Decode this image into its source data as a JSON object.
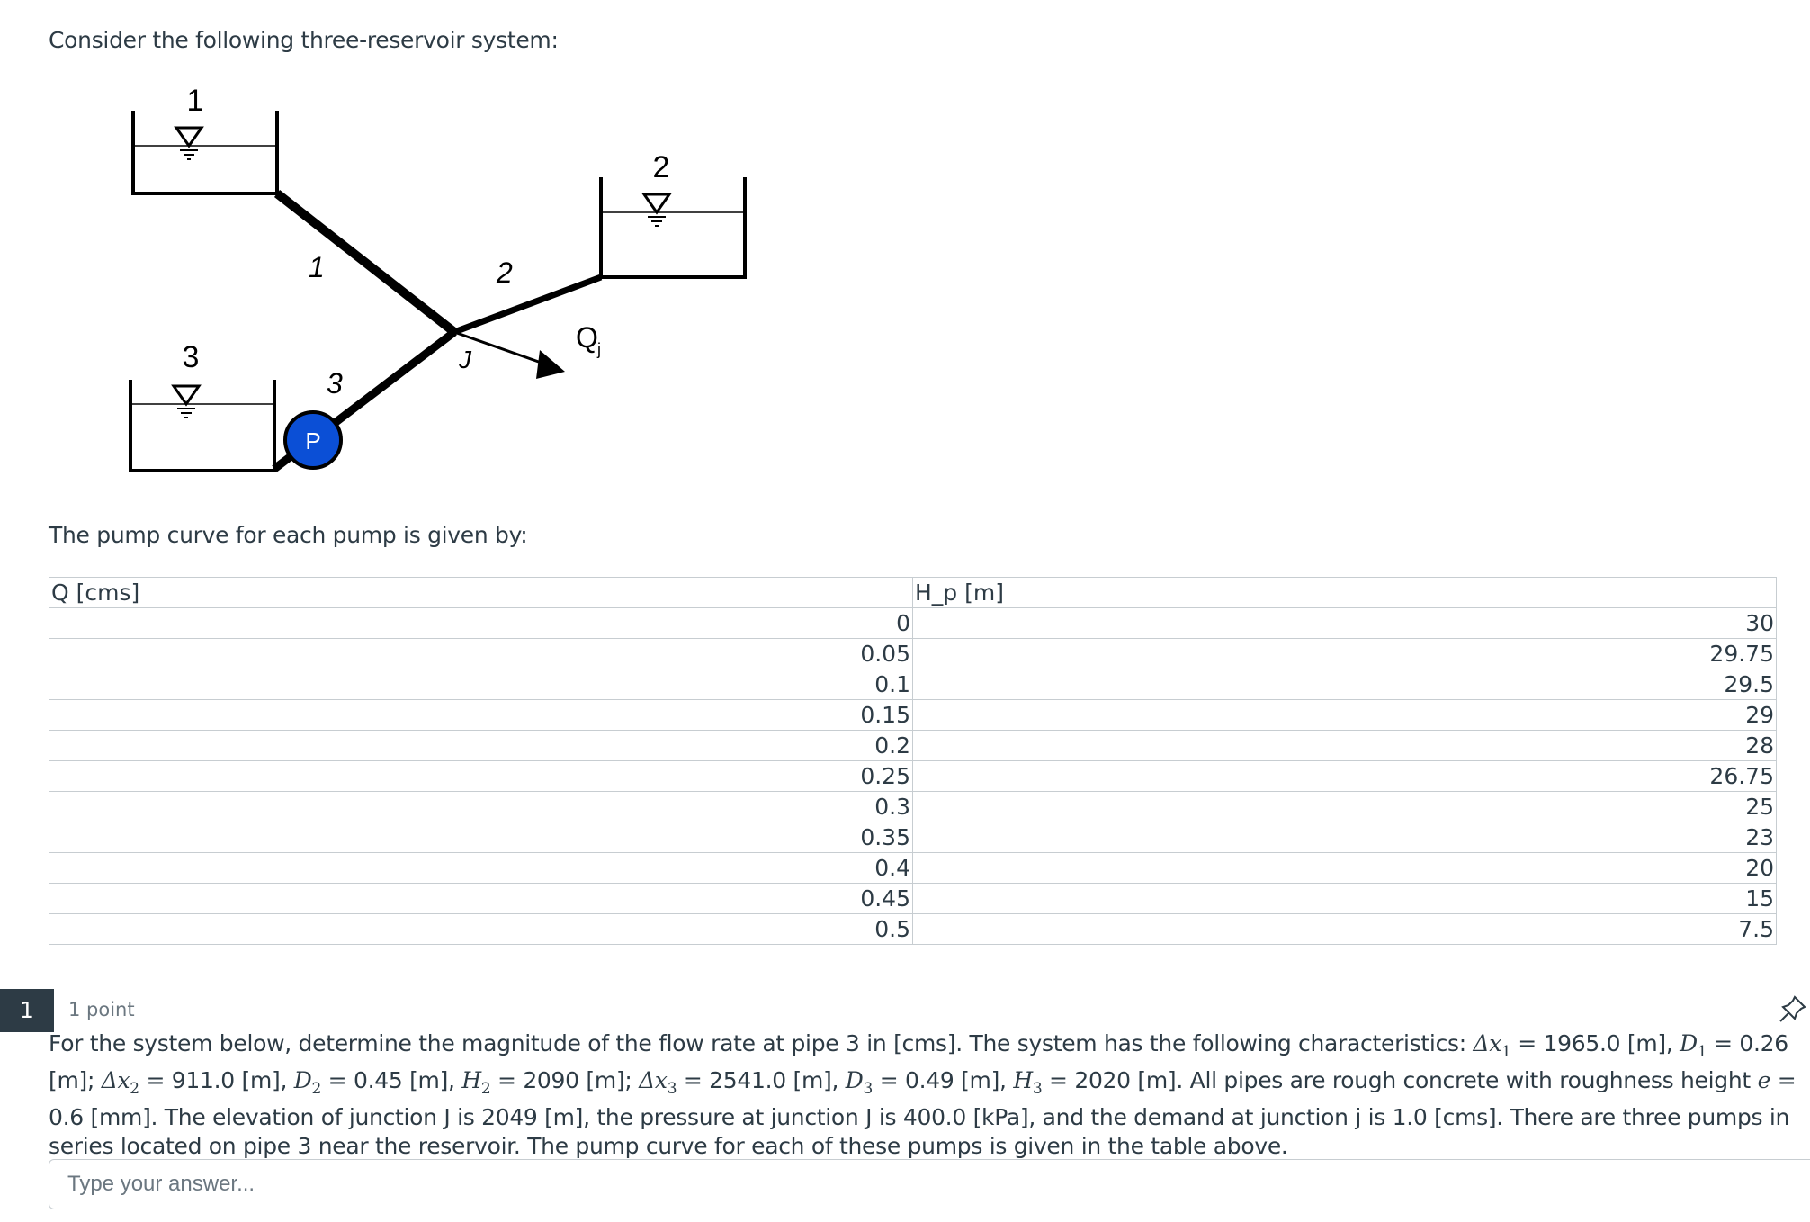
{
  "intro": "Consider the following three-reservoir system:",
  "diagram": {
    "reservoir_labels": [
      "1",
      "2",
      "3"
    ],
    "pipe_labels": [
      "1",
      "2",
      "3"
    ],
    "junction_label": "J",
    "demand_label": "Q",
    "demand_subscript": "j",
    "pump_label": "P",
    "pump_color": "#0b4fd6"
  },
  "pump_caption": "The pump curve for each pump is given by:",
  "pump_table": {
    "headers": [
      "Q [cms]",
      "H_p [m]"
    ],
    "rows": [
      [
        "0",
        "30"
      ],
      [
        "0.05",
        "29.75"
      ],
      [
        "0.1",
        "29.5"
      ],
      [
        "0.15",
        "29"
      ],
      [
        "0.2",
        "28"
      ],
      [
        "0.25",
        "26.75"
      ],
      [
        "0.3",
        "25"
      ],
      [
        "0.35",
        "23"
      ],
      [
        "0.4",
        "20"
      ],
      [
        "0.45",
        "15"
      ],
      [
        "0.5",
        "7.5"
      ]
    ]
  },
  "question": {
    "number": "1",
    "points": "1 point",
    "text": [
      "For the system below, determine the magnitude of the flow rate at pipe 3 in [cms]. The system has the following characteristics: ",
      {
        "sym": "Δx",
        "sub": "1"
      },
      " = 1965.0 [m], ",
      {
        "sym": "D",
        "sub": "1"
      },
      " = 0.26 [m]; ",
      {
        "sym": "Δx",
        "sub": "2"
      },
      " = 911.0 [m], ",
      {
        "sym": "D",
        "sub": "2"
      },
      " = 0.45 [m], ",
      {
        "sym": "H",
        "sub": "2"
      },
      " = 2090 [m]; ",
      {
        "sym": "Δx",
        "sub": "3"
      },
      " = 2541.0 [m], ",
      {
        "sym": "D",
        "sub": "3"
      },
      " = 0.49 [m], ",
      {
        "sym": "H",
        "sub": "3"
      },
      " = 2020 [m]. All pipes are rough concrete with roughness height ",
      {
        "sym": "e",
        "sub": ""
      },
      " = 0.6 [mm]. The elevation of junction J is 2049 [m], the pressure at junction J is 400.0 [kPa], and the demand at junction j is 1.0 [cms]. There are three pumps in series located on pipe 3 near the reservoir. The pump curve for each of these pumps is given in the table above."
    ],
    "answer_placeholder": "Type your answer...",
    "answer_value": ""
  }
}
